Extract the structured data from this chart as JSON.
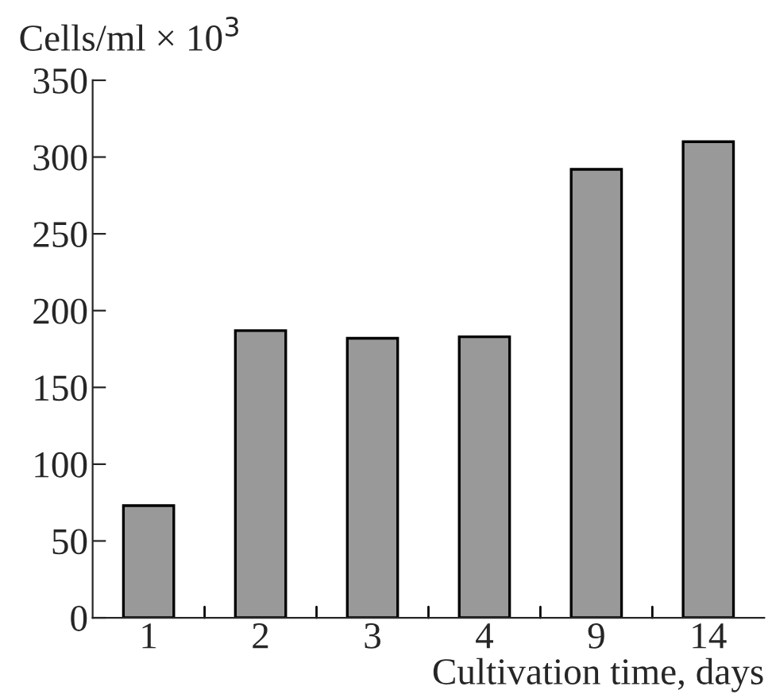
{
  "chart_data": {
    "type": "bar",
    "ylabel": "Cells/ml × 10$^{3}$",
    "xlabel": "Cultivation time, days",
    "categories": [
      "1",
      "2",
      "3",
      "4",
      "9",
      "14"
    ],
    "values": [
      73,
      187,
      182,
      183,
      292,
      310
    ],
    "color": "#999999",
    "ylim": [
      0,
      350
    ],
    "yticks": [
      0,
      50,
      100,
      150,
      200,
      250,
      300,
      350
    ],
    "grid": false
  }
}
